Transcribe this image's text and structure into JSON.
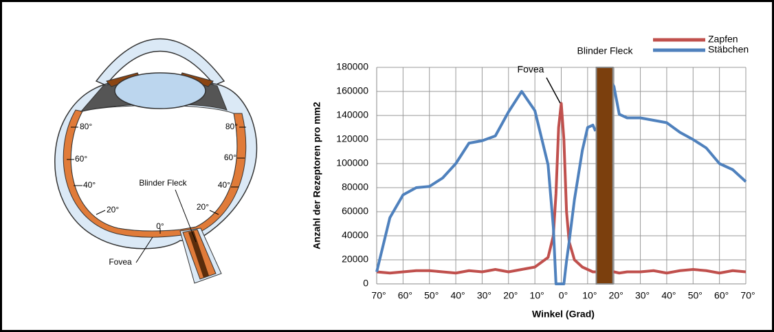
{
  "chart_data": {
    "type": "line",
    "ylabel": "Anzahl der Rezeptoren pro mm2",
    "xlabel": "Winkel (Grad)",
    "annotations": [
      "Fovea",
      "Blinder Fleck"
    ],
    "blind_spot": {
      "xrange": [
        13.3,
        19.6
      ],
      "color": "#7b3f0d"
    },
    "x": [
      -70,
      -65,
      -60,
      -55,
      -50,
      -45,
      -40,
      -35,
      -30,
      -25,
      -20,
      -15,
      -10,
      -5,
      -3,
      -2,
      -1,
      0,
      1,
      2,
      3,
      5,
      8,
      10,
      12,
      13,
      16,
      19,
      20,
      22,
      25,
      30,
      35,
      40,
      45,
      50,
      55,
      60,
      65,
      70
    ],
    "series": [
      {
        "name": "Zapfen",
        "color": "#c0504d",
        "values": [
          10000,
          9000,
          10000,
          11000,
          11000,
          10000,
          9000,
          11000,
          10000,
          12000,
          10000,
          12000,
          14000,
          22000,
          40000,
          75000,
          130000,
          150000,
          120000,
          60000,
          35000,
          20000,
          14000,
          12000,
          10000,
          10000,
          10000,
          10000,
          10000,
          9000,
          10000,
          10000,
          11000,
          9000,
          11000,
          12000,
          11000,
          9000,
          11000,
          10000
        ]
      },
      {
        "name": "Stäbchen",
        "color": "#4f81bd",
        "values": [
          10000,
          55000,
          74000,
          80000,
          81000,
          88000,
          100000,
          117000,
          119000,
          123000,
          143000,
          160000,
          144000,
          99000,
          47000,
          0,
          0,
          0,
          0,
          19000,
          35000,
          70000,
          111000,
          130000,
          132000,
          127000,
          null,
          168000,
          164000,
          141000,
          138000,
          138000,
          136000,
          134000,
          126000,
          120000,
          113000,
          100000,
          95000,
          85000
        ]
      }
    ],
    "xlim": [
      -70,
      70
    ],
    "xticks": [
      {
        "value": -70,
        "label": "70°"
      },
      {
        "value": -60,
        "label": "60°"
      },
      {
        "value": -50,
        "label": "50°"
      },
      {
        "value": -40,
        "label": "40°"
      },
      {
        "value": -30,
        "label": "30°"
      },
      {
        "value": -20,
        "label": "20°"
      },
      {
        "value": -10,
        "label": "10°"
      },
      {
        "value": 0,
        "label": "0°"
      },
      {
        "value": 10,
        "label": "10°"
      },
      {
        "value": 20,
        "label": "20°"
      },
      {
        "value": 30,
        "label": "30°"
      },
      {
        "value": 40,
        "label": "40°"
      },
      {
        "value": 50,
        "label": "50°"
      },
      {
        "value": 60,
        "label": "60°"
      },
      {
        "value": 70,
        "label": "70°"
      }
    ],
    "ylim": [
      0,
      180000
    ],
    "yticks": [
      0,
      20000,
      40000,
      60000,
      80000,
      100000,
      120000,
      140000,
      160000,
      180000
    ],
    "grid": true
  },
  "diagram": {
    "labels": [
      "80°",
      "60°",
      "40°",
      "20°",
      "0°",
      "80°",
      "60°",
      "40°",
      "20°",
      "Blinder Fleck",
      "Fovea"
    ]
  }
}
